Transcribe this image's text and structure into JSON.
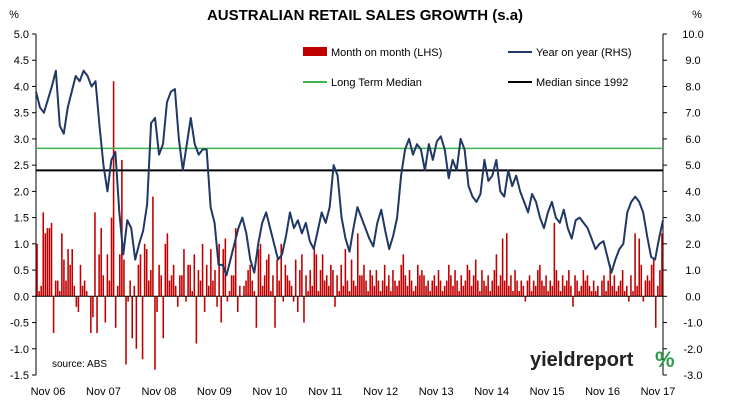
{
  "chart_data": {
    "type": "bar+line",
    "title": "AUSTRALIAN RETAIL SALES GROWTH (s.a)",
    "y_left_unit": "%",
    "y_right_unit": "%",
    "ylim_left": [
      -1.5,
      5.0
    ],
    "ylim_right": [
      -3.0,
      10.0
    ],
    "y_left_ticks": [
      "-1.5",
      "-1.0",
      "-0.5",
      "0.0",
      "0.5",
      "1.0",
      "1.5",
      "2.0",
      "2.5",
      "3.0",
      "3.5",
      "4.0",
      "4.5",
      "5.0"
    ],
    "y_right_ticks": [
      "-3.0",
      "-2.0",
      "-1.0",
      "0.0",
      "1.0",
      "2.0",
      "3.0",
      "4.0",
      "5.0",
      "6.0",
      "7.0",
      "8.0",
      "9.0",
      "10.0"
    ],
    "x_ticks": [
      "Nov 06",
      "Nov 07",
      "Nov 08",
      "Nov 09",
      "Nov 10",
      "Nov 11",
      "Nov 12",
      "Nov 13",
      "Nov 14",
      "Nov 15",
      "Nov 16",
      "Nov 17"
    ],
    "legend": [
      {
        "label": "Month on month (LHS)",
        "kind": "bar",
        "color": "#c00000"
      },
      {
        "label": "Year on year (RHS)",
        "kind": "line",
        "color": "#1f3864"
      },
      {
        "label": "Long Term Median",
        "kind": "line",
        "color": "#3cb44b"
      },
      {
        "label": "Median since 1992",
        "kind": "line",
        "color": "#000000"
      }
    ],
    "long_term_median_lhs": 2.82,
    "median_since_1992_lhs": 2.4,
    "series": [
      {
        "name": "Month on month (LHS)",
        "axis": "left",
        "color": "#c00000",
        "values": [
          1.0,
          0.1,
          0.2,
          1.6,
          1.2,
          1.3,
          1.3,
          1.4,
          -0.7,
          0.3,
          0.3,
          0.1,
          1.2,
          0.7,
          0.3,
          0.9,
          0.6,
          0.9,
          0.2,
          -0.2,
          -0.3,
          0.6,
          0.2,
          0.3,
          0.1,
          0.0,
          -0.7,
          -0.4,
          1.6,
          -0.7,
          0.8,
          1.3,
          0.4,
          -0.5,
          0.8,
          0.3,
          1.5,
          4.1,
          -0.6,
          0.2,
          0.8,
          2.6,
          0.7,
          -1.3,
          -0.1,
          0.3,
          -0.8,
          0.2,
          -1.0,
          0.6,
          0.8,
          -1.2,
          1.0,
          0.9,
          0.3,
          0.5,
          1.9,
          -1.4,
          -0.3,
          0.6,
          0.4,
          -0.8,
          1.0,
          1.2,
          0.3,
          0.4,
          0.6,
          0.2,
          -0.2,
          0.4,
          0.4,
          0.9,
          -0.1,
          0.6,
          0.6,
          0.1,
          0.8,
          -0.9,
          0.5,
          0.3,
          1.0,
          -0.3,
          0.6,
          0.2,
          0.9,
          0.3,
          0.5,
          -0.2,
          1.0,
          -0.5,
          0.9,
          1.1,
          -0.1,
          0.1,
          0.4,
          0.4,
          1.3,
          -0.3,
          0.2,
          0.0,
          0.2,
          0.3,
          0.5,
          0.6,
          0.3,
          0.1,
          -0.6,
          0.9,
          1.0,
          0.2,
          0.4,
          0.7,
          0.8,
          0.1,
          0.4,
          -0.6,
          0.7,
          0.3,
          1.0,
          -0.1,
          0.6,
          0.4,
          0.3,
          0.2,
          -0.1,
          0.7,
          -0.3,
          0.5,
          0.8,
          -0.5,
          0.4,
          0.1,
          0.5,
          0.2,
          0.9,
          0.8,
          0.1,
          0.5,
          0.8,
          0.3,
          0.4,
          0.2,
          0.6,
          0.5,
          -0.2,
          0.4,
          0.1,
          0.6,
          0.2,
          0.9,
          0.3,
          0.1,
          0.7,
          0.3,
          0.2,
          1.2,
          0.4,
          0.4,
          0.6,
          0.3,
          0.1,
          0.5,
          0.4,
          0.2,
          0.5,
          0.3,
          0.1,
          0.3,
          0.6,
          0.2,
          0.4,
          0.1,
          0.5,
          0.3,
          0.2,
          0.3,
          0.6,
          0.8,
          0.4,
          0.2,
          0.5,
          0.3,
          0.1,
          0.2,
          0.6,
          0.4,
          0.5,
          0.4,
          0.2,
          0.3,
          0.1,
          0.3,
          0.4,
          0.2,
          0.5,
          0.3,
          0.1,
          0.2,
          0.3,
          0.6,
          0.4,
          0.2,
          0.5,
          0.3,
          0.1,
          0.4,
          0.2,
          0.3,
          0.6,
          0.5,
          0.2,
          0.4,
          0.7,
          0.3,
          0.1,
          0.5,
          0.3,
          0.2,
          0.4,
          0.1,
          0.3,
          0.5,
          0.8,
          0.2,
          0.4,
          1.1,
          0.3,
          1.2,
          0.2,
          0.4,
          0.1,
          0.5,
          0.3,
          0.1,
          0.3,
          0.2,
          -0.1,
          0.3,
          0.4,
          0.1,
          0.3,
          0.2,
          0.5,
          0.6,
          0.3,
          0.2,
          0.4,
          0.1,
          0.3,
          0.2,
          1.4,
          0.5,
          0.3,
          0.1,
          0.4,
          0.2,
          0.3,
          0.5,
          0.2,
          -0.2,
          0.4,
          0.3,
          0.1,
          0.2,
          0.5,
          0.3,
          0.4,
          0.2,
          0.1,
          0.3,
          0.1,
          0.2,
          0.0,
          0.3,
          0.4,
          0.1,
          0.3,
          0.6,
          0.2,
          0.4,
          0.1,
          0.2,
          0.3,
          0.5,
          0.1,
          0.2,
          -0.1,
          0.4,
          0.1,
          1.2,
          0.2,
          1.1,
          0.6,
          -0.1,
          0.3,
          0.4,
          0.3,
          0.6,
          0.7,
          -0.6,
          0.2,
          0.5,
          1.2
        ]
      },
      {
        "name": "Year on year (RHS)",
        "axis": "right",
        "color": "#1f3864",
        "values": [
          7.8,
          7.2,
          7.0,
          7.5,
          8.0,
          8.6,
          6.5,
          6.2,
          7.2,
          7.8,
          8.4,
          8.2,
          8.6,
          8.4,
          8.0,
          8.2,
          6.5,
          5.0,
          4.0,
          5.2,
          5.5,
          3.2,
          1.6,
          2.9,
          2.6,
          1.4,
          2.0,
          2.5,
          3.5,
          6.6,
          6.8,
          5.4,
          5.8,
          7.4,
          7.8,
          7.9,
          6.0,
          4.8,
          5.8,
          6.8,
          5.8,
          5.4,
          5.6,
          5.6,
          3.4,
          2.8,
          1.2,
          1.2,
          0.8,
          1.4,
          2.0,
          2.6,
          3.0,
          2.4,
          1.4,
          0.9,
          2.0,
          2.8,
          3.2,
          2.6,
          2.0,
          1.4,
          1.6,
          2.3,
          3.2,
          2.6,
          2.9,
          2.4,
          2.8,
          2.1,
          1.8,
          2.5,
          3.2,
          2.8,
          3.4,
          5.0,
          4.6,
          3.0,
          2.2,
          1.7,
          2.6,
          3.4,
          3.0,
          2.6,
          2.2,
          1.9,
          2.8,
          3.3,
          2.5,
          1.8,
          2.3,
          3.0,
          4.6,
          5.6,
          6.0,
          5.4,
          5.8,
          5.6,
          4.8,
          5.8,
          5.2,
          5.9,
          6.1,
          5.6,
          4.5,
          5.2,
          4.8,
          6.0,
          5.6,
          4.2,
          3.8,
          3.6,
          3.9,
          5.2,
          4.4,
          4.6,
          5.2,
          4.0,
          3.8,
          4.8,
          4.2,
          4.6,
          4.0,
          3.6,
          3.2,
          3.9,
          3.6,
          3.0,
          2.6,
          3.2,
          3.6,
          3.0,
          2.8,
          3.3,
          2.6,
          2.2,
          2.9,
          3.0,
          2.8,
          2.6,
          2.2,
          1.8,
          2.0,
          2.1,
          1.5,
          0.9,
          1.4,
          1.8,
          2.0,
          3.2,
          3.6,
          3.8,
          3.6,
          3.2,
          2.3,
          1.5,
          1.4,
          2.2,
          2.9
        ]
      }
    ]
  },
  "source": "source: ABS",
  "logo": {
    "text": "yieldreport",
    "symbol": "%"
  }
}
